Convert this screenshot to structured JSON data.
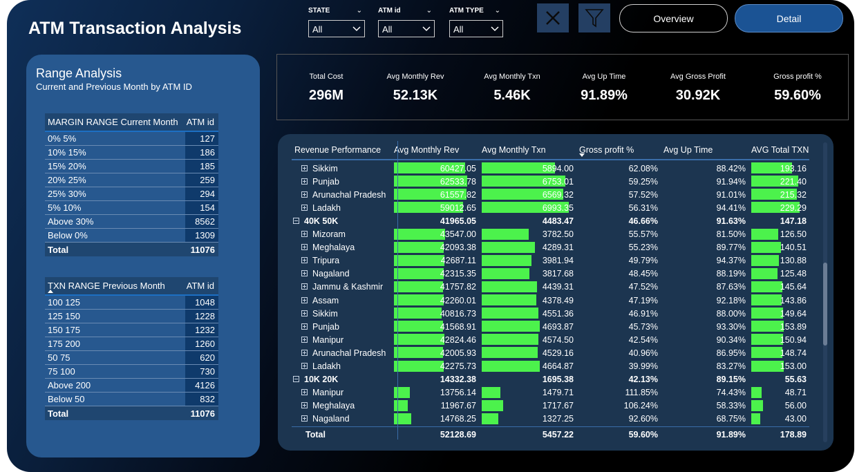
{
  "header": {
    "title": "ATM Transaction Analysis"
  },
  "filters": [
    {
      "label": "STATE",
      "value": "All"
    },
    {
      "label": "ATM id",
      "value": "All"
    },
    {
      "label": "ATM TYPE",
      "value": "All"
    }
  ],
  "nav": {
    "overview_label": "Overview",
    "detail_label": "Detail"
  },
  "range_panel": {
    "title": "Range Analysis",
    "subtitle": "Current and Previous Month by ATM ID",
    "margin_table": {
      "col1": "MARGIN RANGE Current Month",
      "col2": "ATM id",
      "rows": [
        {
          "range": "0% 5%",
          "count": "127"
        },
        {
          "range": "10% 15%",
          "count": "186"
        },
        {
          "range": "15% 20%",
          "count": "185"
        },
        {
          "range": "20% 25%",
          "count": "259"
        },
        {
          "range": "25% 30%",
          "count": "294"
        },
        {
          "range": "5% 10%",
          "count": "154"
        },
        {
          "range": "Above 30%",
          "count": "8562"
        },
        {
          "range": "Below 0%",
          "count": "1309"
        }
      ],
      "total_label": "Total",
      "total_value": "11076"
    },
    "txn_table": {
      "col1": "TXN RANGE Previous Month",
      "col2": "ATM id",
      "rows": [
        {
          "range": "100 125",
          "count": "1048"
        },
        {
          "range": "125 150",
          "count": "1228"
        },
        {
          "range": "150 175",
          "count": "1232"
        },
        {
          "range": "175 200",
          "count": "1260"
        },
        {
          "range": "50 75",
          "count": "620"
        },
        {
          "range": "75 100",
          "count": "730"
        },
        {
          "range": "Above 200",
          "count": "4126"
        },
        {
          "range": "Below 50",
          "count": "832"
        }
      ],
      "total_label": "Total",
      "total_value": "11076"
    }
  },
  "kpis": [
    {
      "label": "Total Cost",
      "value": "296M"
    },
    {
      "label": "Avg Monthly Rev",
      "value": "52.13K"
    },
    {
      "label": "Avg Monthly Txn",
      "value": "5.46K"
    },
    {
      "label": "Avg Up Time",
      "value": "91.89%"
    },
    {
      "label": "Avg Gross Profit",
      "value": "30.92K"
    },
    {
      "label": "Gross profit %",
      "value": "59.60%"
    }
  ],
  "matrix": {
    "headers": [
      "Revenue Performance",
      "Avg Monthly Rev",
      "Avg Monthly Txn",
      "Gross profit %",
      "Avg Up Time",
      "AVG Total TXN"
    ],
    "bar_fraction_basis": {
      "rev_max": 70000,
      "txn_max": 7400,
      "total_txn_max": 262
    },
    "rows": [
      {
        "type": "child",
        "label": "Sikkim",
        "rev": "60427.05",
        "txn": "5894.00",
        "gp": "62.08%",
        "up": "88.42%",
        "tt": "193.16"
      },
      {
        "type": "child",
        "label": "Punjab",
        "rev": "62533.78",
        "txn": "6753.01",
        "gp": "59.25%",
        "up": "91.94%",
        "tt": "221.40"
      },
      {
        "type": "child",
        "label": "Arunachal Pradesh",
        "rev": "61557.82",
        "txn": "6569.32",
        "gp": "57.52%",
        "up": "91.01%",
        "tt": "215.32"
      },
      {
        "type": "child",
        "label": "Ladakh",
        "rev": "59012.65",
        "txn": "6993.35",
        "gp": "56.31%",
        "up": "94.41%",
        "tt": "229.29"
      },
      {
        "type": "group",
        "label": "40K 50K",
        "rev": "41965.05",
        "txn": "4483.47",
        "gp": "46.66%",
        "up": "91.63%",
        "tt": "147.18"
      },
      {
        "type": "child",
        "label": "Mizoram",
        "rev": "43547.00",
        "txn": "3782.50",
        "gp": "55.57%",
        "up": "81.50%",
        "tt": "126.50"
      },
      {
        "type": "child",
        "label": "Meghalaya",
        "rev": "42093.38",
        "txn": "4289.31",
        "gp": "55.23%",
        "up": "89.77%",
        "tt": "140.51"
      },
      {
        "type": "child",
        "label": "Tripura",
        "rev": "42687.11",
        "txn": "3981.94",
        "gp": "49.79%",
        "up": "94.37%",
        "tt": "130.88"
      },
      {
        "type": "child",
        "label": "Nagaland",
        "rev": "42315.35",
        "txn": "3817.68",
        "gp": "48.45%",
        "up": "88.19%",
        "tt": "125.48"
      },
      {
        "type": "child",
        "label": "Jammu & Kashmir",
        "rev": "41757.82",
        "txn": "4439.31",
        "gp": "47.52%",
        "up": "87.63%",
        "tt": "145.64"
      },
      {
        "type": "child",
        "label": "Assam",
        "rev": "42260.01",
        "txn": "4378.49",
        "gp": "47.19%",
        "up": "92.18%",
        "tt": "143.86"
      },
      {
        "type": "child",
        "label": "Sikkim",
        "rev": "40816.73",
        "txn": "4551.36",
        "gp": "46.91%",
        "up": "88.00%",
        "tt": "149.64"
      },
      {
        "type": "child",
        "label": "Punjab",
        "rev": "41568.91",
        "txn": "4693.87",
        "gp": "45.73%",
        "up": "93.30%",
        "tt": "153.89"
      },
      {
        "type": "child",
        "label": "Manipur",
        "rev": "42824.46",
        "txn": "4574.50",
        "gp": "42.54%",
        "up": "90.34%",
        "tt": "150.94"
      },
      {
        "type": "child",
        "label": "Arunachal Pradesh",
        "rev": "42005.93",
        "txn": "4529.16",
        "gp": "40.96%",
        "up": "86.95%",
        "tt": "148.74"
      },
      {
        "type": "child",
        "label": "Ladakh",
        "rev": "42275.73",
        "txn": "4664.87",
        "gp": "39.99%",
        "up": "83.27%",
        "tt": "153.00"
      },
      {
        "type": "group",
        "label": "10K 20K",
        "rev": "14332.38",
        "txn": "1695.38",
        "gp": "42.13%",
        "up": "89.15%",
        "tt": "55.63"
      },
      {
        "type": "child",
        "label": "Manipur",
        "rev": "13756.14",
        "txn": "1479.71",
        "gp": "111.85%",
        "up": "74.43%",
        "tt": "48.71"
      },
      {
        "type": "child",
        "label": "Meghalaya",
        "rev": "11967.67",
        "txn": "1717.67",
        "gp": "106.24%",
        "up": "58.33%",
        "tt": "56.00"
      },
      {
        "type": "child",
        "label": "Nagaland",
        "rev": "14768.25",
        "txn": "1327.25",
        "gp": "92.60%",
        "up": "68.75%",
        "tt": "43.00"
      }
    ],
    "total": {
      "label": "Total",
      "rev": "52128.69",
      "txn": "5457.22",
      "gp": "59.60%",
      "up": "91.89%",
      "tt": "178.89"
    }
  },
  "colors": {
    "bar": "#4cf24c",
    "panel": "#27588f",
    "accent_button": "#1b5394"
  }
}
